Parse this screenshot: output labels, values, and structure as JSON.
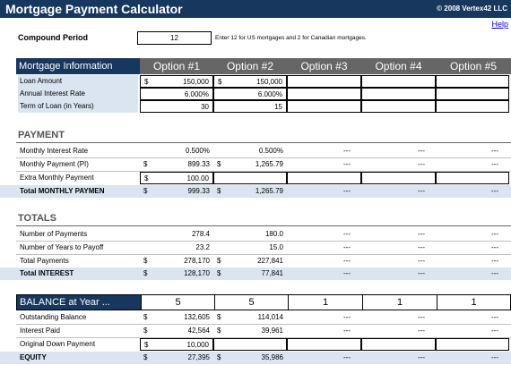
{
  "header": {
    "title": "Mortgage Payment Calculator",
    "copyright": "© 2008 Vertex42 LLC",
    "help": "Help"
  },
  "compound": {
    "label": "Compound Period",
    "value": "12",
    "note": "Enter 12 for US mortgages and 2 for Canadian mortgages."
  },
  "mortgage": {
    "header": "Mortgage Information",
    "options": [
      "Option #1",
      "Option #2",
      "Option #3",
      "Option #4",
      "Option #5"
    ],
    "currency": "$",
    "loan_amount_label": "Loan Amount",
    "loan_amount": [
      "150,000",
      "150,000"
    ],
    "rate_label": "Annual Interest Rate",
    "rate": [
      "6.000%",
      "6.000%"
    ],
    "term_label": "Term of Loan (in Years)",
    "term": [
      "30",
      "15"
    ]
  },
  "payment": {
    "section": "PAYMENT",
    "mrate_label": "Monthly Interest Rate",
    "mrate": [
      "0.500%",
      "0.500%",
      "---",
      "---",
      "---"
    ],
    "mpay_label": "Monthly Payment (PI)",
    "mpay": [
      "899.33",
      "1,265.79",
      "---",
      "---",
      "---"
    ],
    "extra_label": "Extra Monthly Payment",
    "extra": [
      "100.00"
    ],
    "total_label": "Total MONTHLY PAYMEN",
    "total": [
      "999.33",
      "1,265.79",
      "---",
      "---",
      "---"
    ]
  },
  "totals": {
    "section": "TOTALS",
    "npay_label": "Number of Payments",
    "npay": [
      "278.4",
      "180.0",
      "---",
      "---",
      "---"
    ],
    "years_label": "Number of Years to Payoff",
    "years": [
      "23.2",
      "15.0",
      "---",
      "---",
      "---"
    ],
    "tpay_label": "Total Payments",
    "tpay": [
      "278,170",
      "227,841",
      "---",
      "---",
      "---"
    ],
    "tint_label": "Total INTEREST",
    "tint": [
      "128,170",
      "77,841",
      "---",
      "---",
      "---"
    ]
  },
  "balance": {
    "header": "BALANCE at Year ...",
    "years": [
      "5",
      "5",
      "1",
      "1",
      "1"
    ],
    "out_label": "Outstanding Balance",
    "out": [
      "132,605",
      "114,014",
      "---",
      "---",
      "---"
    ],
    "int_label": "Interest Paid",
    "int": [
      "42,564",
      "39,961",
      "---",
      "---",
      "---"
    ],
    "down_label": "Original Down Payment",
    "down": [
      "10,000"
    ],
    "equity_label": "EQUITY",
    "equity": [
      "27,395",
      "35,986",
      "---",
      "---",
      "---"
    ]
  },
  "colors": {
    "title_bg": "#17375e",
    "header_bg": "#666666",
    "label_bg": "#dbe5f1"
  }
}
